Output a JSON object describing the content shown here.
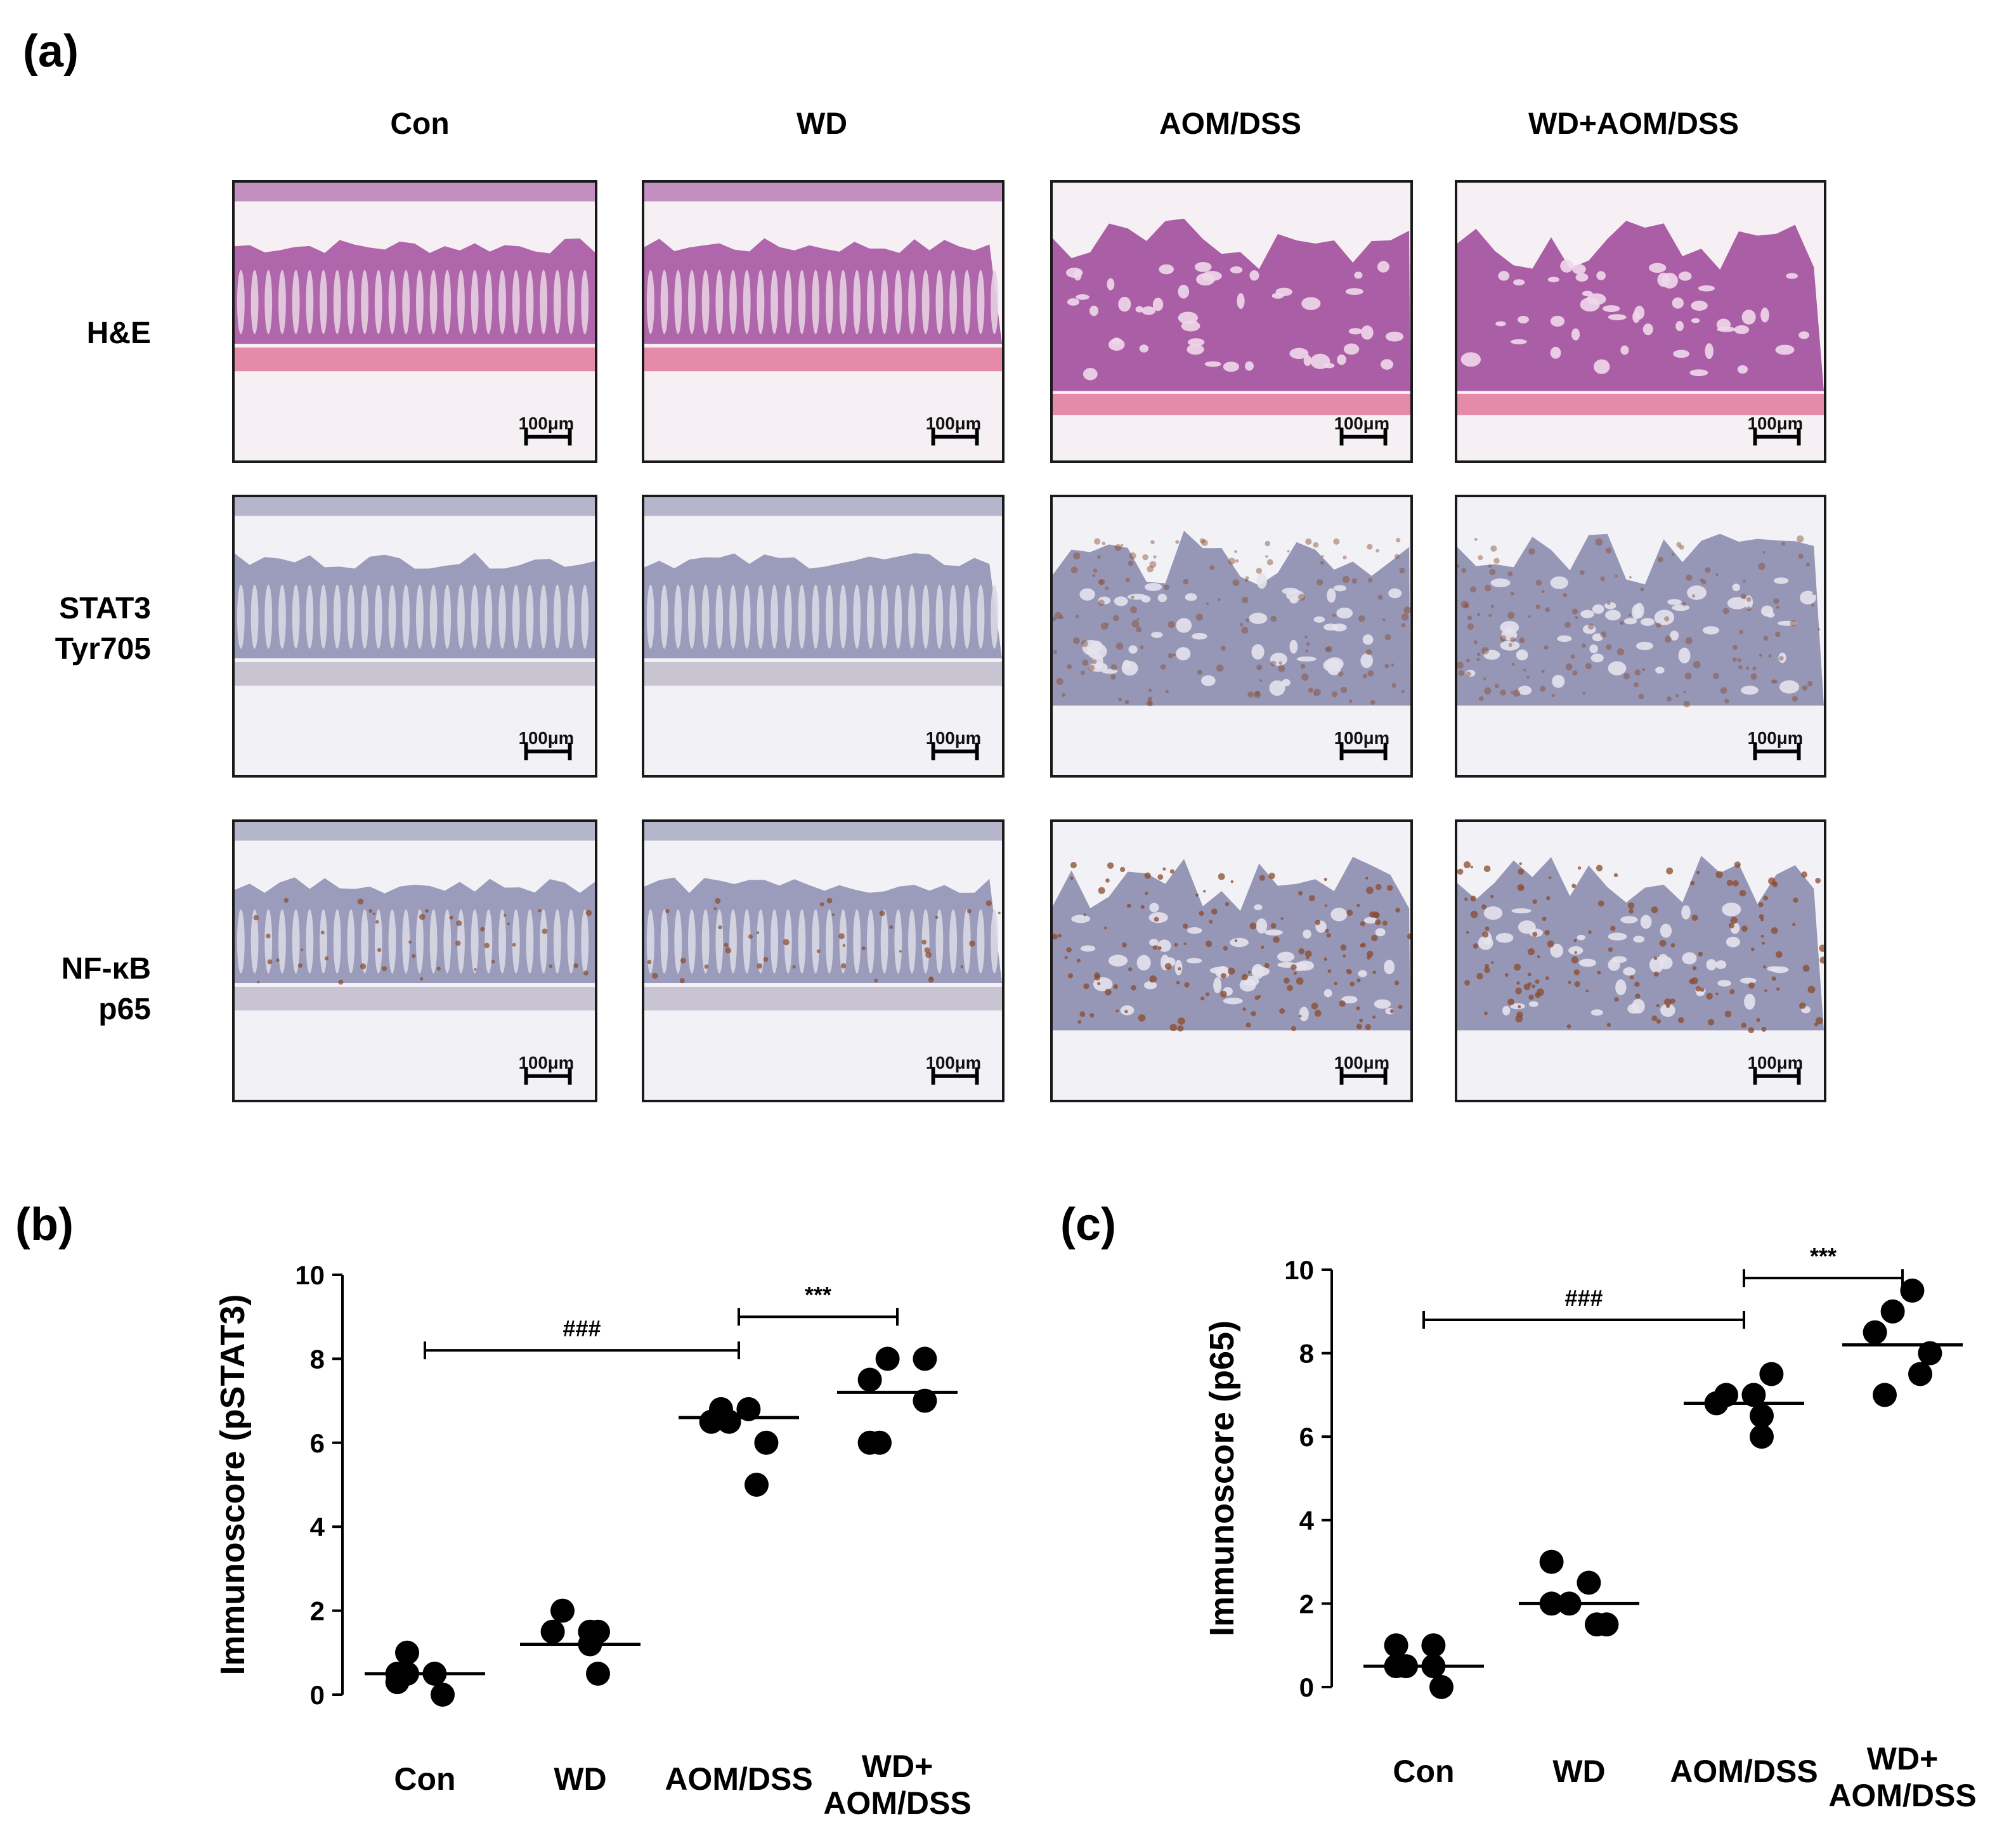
{
  "panel_a": {
    "letter": "(a)",
    "columns": [
      "Con",
      "WD",
      "AOM/DSS",
      "WD+AOM/DSS"
    ],
    "rows": [
      {
        "label_lines": [
          "H&E"
        ],
        "stain": "he"
      },
      {
        "label_lines": [
          "STAT3",
          "Tyr705"
        ],
        "stain": "ihc"
      },
      {
        "label_lines": [
          "NF-κB",
          "p65"
        ],
        "stain": "ihc"
      }
    ],
    "scale_label": "100μm",
    "colors": {
      "he_tissue": "#a24e9c",
      "he_muscle": "#e58aa8",
      "he_bg": "#f6f0f4",
      "ihc_tissue": "#8c8cb0",
      "ihc_brown": "#8a4a2a",
      "ihc_bg": "#f2f2f6"
    },
    "tumor_columns": [
      2,
      3
    ]
  },
  "chart_data": [
    {
      "letter": "(b)",
      "type": "scatter",
      "ylabel": "Immunoscore (pSTAT3)",
      "categories": [
        [
          "Con"
        ],
        [
          "WD"
        ],
        [
          "AOM/DSS"
        ],
        [
          "WD+",
          "AOM/DSS"
        ]
      ],
      "ylim": [
        0,
        10
      ],
      "yticks": [
        0,
        2,
        4,
        6,
        8,
        10
      ],
      "points": [
        [
          0.3,
          0.5,
          0.5,
          0.5,
          1.0,
          0.0
        ],
        [
          1.5,
          1.5,
          1.2,
          1.5,
          2.0,
          0.5
        ],
        [
          6.5,
          6.8,
          6.8,
          6.0,
          6.5,
          5.0
        ],
        [
          7.5,
          8.0,
          8.0,
          7.0,
          6.0,
          6.0
        ]
      ],
      "means": [
        0.5,
        1.2,
        6.6,
        7.2
      ],
      "brackets": [
        {
          "from": 0,
          "to": 2,
          "y": 8.2,
          "label": "###"
        },
        {
          "from": 2,
          "to": 3,
          "y": 9.0,
          "label": "***"
        }
      ]
    },
    {
      "letter": "(c)",
      "type": "scatter",
      "ylabel": "Immunoscore (p65)",
      "categories": [
        [
          "Con"
        ],
        [
          "WD"
        ],
        [
          "AOM/DSS"
        ],
        [
          "WD+",
          "AOM/DSS"
        ]
      ],
      "ylim": [
        0,
        10
      ],
      "yticks": [
        0,
        2,
        4,
        6,
        8,
        10
      ],
      "points": [
        [
          1.0,
          1.0,
          0.5,
          0.5,
          0.5,
          0.0
        ],
        [
          3.0,
          2.0,
          2.5,
          1.5,
          1.5,
          2.0
        ],
        [
          6.8,
          7.0,
          7.0,
          7.5,
          6.5,
          6.0
        ],
        [
          8.5,
          9.0,
          9.5,
          8.0,
          7.0,
          7.5
        ]
      ],
      "means": [
        0.5,
        2.0,
        6.8,
        8.2
      ],
      "brackets": [
        {
          "from": 0,
          "to": 2,
          "y": 8.8,
          "label": "###"
        },
        {
          "from": 2,
          "to": 3,
          "y": 9.8,
          "label": "***"
        }
      ]
    }
  ]
}
